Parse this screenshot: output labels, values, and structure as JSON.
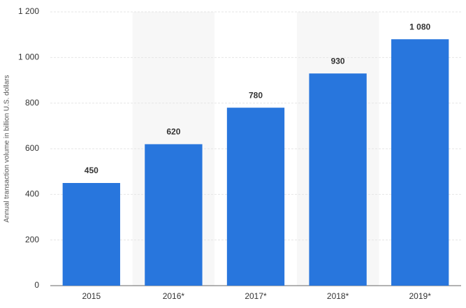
{
  "chart_data": {
    "type": "bar",
    "y_label": "Annual transaction volume in billion U.S. dollars",
    "categories": [
      "2015",
      "2016*",
      "2017*",
      "2018*",
      "2019*"
    ],
    "values": [
      450,
      620,
      780,
      930,
      1080
    ],
    "value_labels": [
      "450",
      "620",
      "780",
      "930",
      "1 080"
    ],
    "color": "#2876dd",
    "ylim": [
      0,
      1200
    ],
    "yticks": [
      0,
      200,
      400,
      600,
      800,
      {
        "value": 1000,
        "label": "1 000"
      },
      {
        "value": 1200,
        "label": "1 200"
      }
    ],
    "grid": true
  }
}
